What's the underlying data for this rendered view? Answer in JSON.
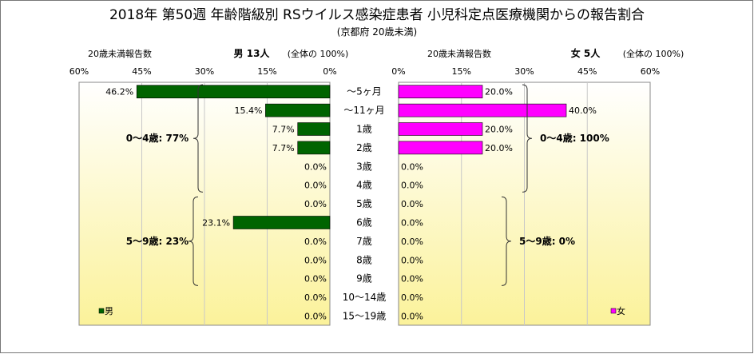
{
  "title": "2018年 第50週 年齢階級別 RSウイルス感染症患者 小児科定点医療機関からの報告割合",
  "subtitle": "(京都府 20歳未満)",
  "colors": {
    "male": "#006400",
    "female": "#ff00ff",
    "panel_top": "#ffffff",
    "panel_bottom": "#fbf29a",
    "grid": "#c8c8c8"
  },
  "chart_data": [
    {
      "type": "bar",
      "orientation": "horizontal",
      "direction": "right-to-left",
      "header_left": "20歳未満報告数",
      "header_sex": "男 13人",
      "header_right": "(全体の 100%)",
      "legend": "男",
      "legend_position": "bottom-left",
      "xlim": [
        0,
        60
      ],
      "ticks": [
        "60%",
        "45%",
        "30%",
        "15%",
        "0%"
      ],
      "grid": true,
      "categories": [
        "～5ヶ月",
        "～11ヶ月",
        "1歳",
        "2歳",
        "3歳",
        "4歳",
        "5歳",
        "6歳",
        "7歳",
        "8歳",
        "9歳",
        "10～14歳",
        "15～19歳"
      ],
      "values": [
        46.2,
        15.4,
        7.7,
        7.7,
        0.0,
        0.0,
        0.0,
        23.1,
        0.0,
        0.0,
        0.0,
        0.0,
        0.0
      ],
      "value_labels": [
        "46.2%",
        "15.4%",
        "7.7%",
        "7.7%",
        "0.0%",
        "0.0%",
        "0.0%",
        "23.1%",
        "0.0%",
        "0.0%",
        "0.0%",
        "0.0%",
        "0.0%"
      ],
      "groups": [
        {
          "label": "0～4歳: 77%",
          "from": 0,
          "to": 5
        },
        {
          "label": "5～9歳: 23%",
          "from": 6,
          "to": 10
        }
      ]
    },
    {
      "type": "bar",
      "orientation": "horizontal",
      "direction": "left-to-right",
      "header_left": "20歳未満報告数",
      "header_sex": "女 5人",
      "header_right": "(全体の 100%)",
      "legend": "女",
      "legend_position": "bottom-right",
      "xlim": [
        0,
        60
      ],
      "ticks": [
        "0%",
        "15%",
        "30%",
        "45%",
        "60%"
      ],
      "grid": true,
      "categories": [
        "～5ヶ月",
        "～11ヶ月",
        "1歳",
        "2歳",
        "3歳",
        "4歳",
        "5歳",
        "6歳",
        "7歳",
        "8歳",
        "9歳",
        "10～14歳",
        "15～19歳"
      ],
      "values": [
        20.0,
        40.0,
        20.0,
        20.0,
        0.0,
        0.0,
        0.0,
        0.0,
        0.0,
        0.0,
        0.0,
        0.0,
        0.0
      ],
      "value_labels": [
        "20.0%",
        "40.0%",
        "20.0%",
        "20.0%",
        "0.0%",
        "0.0%",
        "0.0%",
        "0.0%",
        "0.0%",
        "0.0%",
        "0.0%",
        "0.0%",
        "0.0%"
      ],
      "groups": [
        {
          "label": "0～4歳: 100%",
          "from": 0,
          "to": 5
        },
        {
          "label": "5～9歳: 0%",
          "from": 6,
          "to": 10
        }
      ]
    }
  ]
}
